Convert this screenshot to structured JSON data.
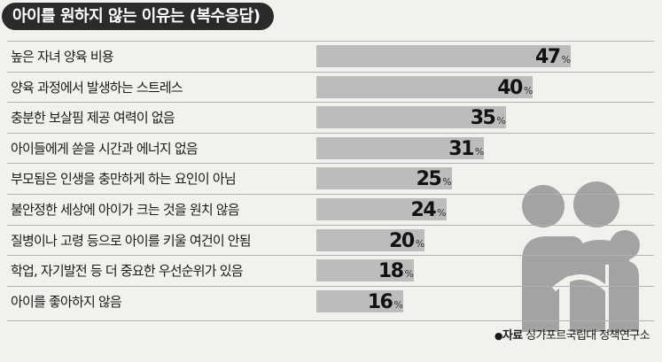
{
  "chart_data": {
    "type": "bar",
    "orientation": "horizontal",
    "title": "아이를 원하지 않는 이유는 (복수응답)",
    "unit": "%",
    "categories": [
      "높은 자녀 양육 비용",
      "양육 과정에서 발생하는 스트레스",
      "충분한 보살핌 제공 여력이 없음",
      "아이들에게 쏟을 시간과 에너지 없음",
      "부모됨은 인생을 충만하게 하는 요인이 아님",
      "불안정한 세상에 아이가 크는 것을 원치 않음",
      "질병이나 고령 등으로 아이를 키울 여건이 안됨",
      "학업, 자기발전 등 더 중요한 우선순위가 있음",
      "아이를 좋아하지 않음"
    ],
    "values": [
      47,
      40,
      35,
      31,
      25,
      24,
      20,
      18,
      16
    ],
    "xlim": [
      0,
      50
    ],
    "bar_color": "#bcbcbc",
    "legend": "none"
  },
  "source": {
    "label": "자료",
    "text": "싱가포르국립대 정책연구소"
  },
  "icon": "family-hug-icon"
}
